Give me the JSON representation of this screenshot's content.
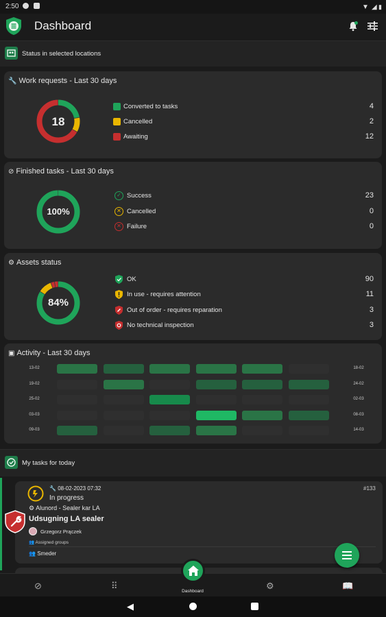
{
  "status_bar": {
    "time": "2:50"
  },
  "app_bar": {
    "title": "Dashboard",
    "icons": [
      "notification-bell-icon",
      "filter-sliders-icon"
    ]
  },
  "status_section": {
    "label": "Status in selected locations"
  },
  "work_requests": {
    "title": "Work requests - Last 30 days",
    "total": "18",
    "items": [
      {
        "label": "Converted to tasks",
        "value": "4",
        "color": "#1fa45a"
      },
      {
        "label": "Cancelled",
        "value": "2",
        "color": "#e9b600"
      },
      {
        "label": "Awaiting",
        "value": "12",
        "color": "#c62f2f"
      }
    ]
  },
  "finished_tasks": {
    "title": "Finished tasks - Last 30 days",
    "center": "100%",
    "items": [
      {
        "label": "Success",
        "value": "23",
        "color": "#1fa45a"
      },
      {
        "label": "Cancelled",
        "value": "0",
        "color": "#e9b600"
      },
      {
        "label": "Failure",
        "value": "0",
        "color": "#c62f2f"
      }
    ]
  },
  "assets_status": {
    "title": "Assets status",
    "center": "84%",
    "items": [
      {
        "label": "OK",
        "value": "90",
        "color": "#1fa45a"
      },
      {
        "label": "In use - requires attention",
        "value": "11",
        "color": "#e9b600"
      },
      {
        "label": "Out of order - requires reparation",
        "value": "3",
        "color": "#c62f2f"
      },
      {
        "label": "No technical inspection",
        "value": "3",
        "color": "#c62f2f"
      }
    ]
  },
  "activity": {
    "title": "Activity - Last 30 days",
    "rows": [
      {
        "left": "13-02",
        "right": "18-02",
        "cells": [
          2,
          1,
          2,
          2,
          2,
          0
        ]
      },
      {
        "left": "19-02",
        "right": "24-02",
        "cells": [
          0,
          2,
          0,
          1,
          1,
          1
        ]
      },
      {
        "left": "25-02",
        "right": "02-03",
        "cells": [
          0,
          0,
          3,
          0,
          0,
          0
        ]
      },
      {
        "left": "03-03",
        "right": "08-03",
        "cells": [
          0,
          0,
          0,
          4,
          2,
          1
        ]
      },
      {
        "left": "09-03",
        "right": "14-03",
        "cells": [
          1,
          0,
          1,
          2,
          0,
          0
        ]
      }
    ]
  },
  "my_tasks_section": {
    "label": "My tasks for today"
  },
  "task": {
    "datetime": "08-02-2023 07:32",
    "number": "#133",
    "status": "In progress",
    "asset": "Alunord - Sealer kar LA",
    "name": "Udsugning LA sealer",
    "assignee": "Grzegorz Prączek",
    "groups_label": "Assigned groups",
    "group": "Smeder"
  },
  "bottom_nav": {
    "active_label": "Dashboard"
  }
}
